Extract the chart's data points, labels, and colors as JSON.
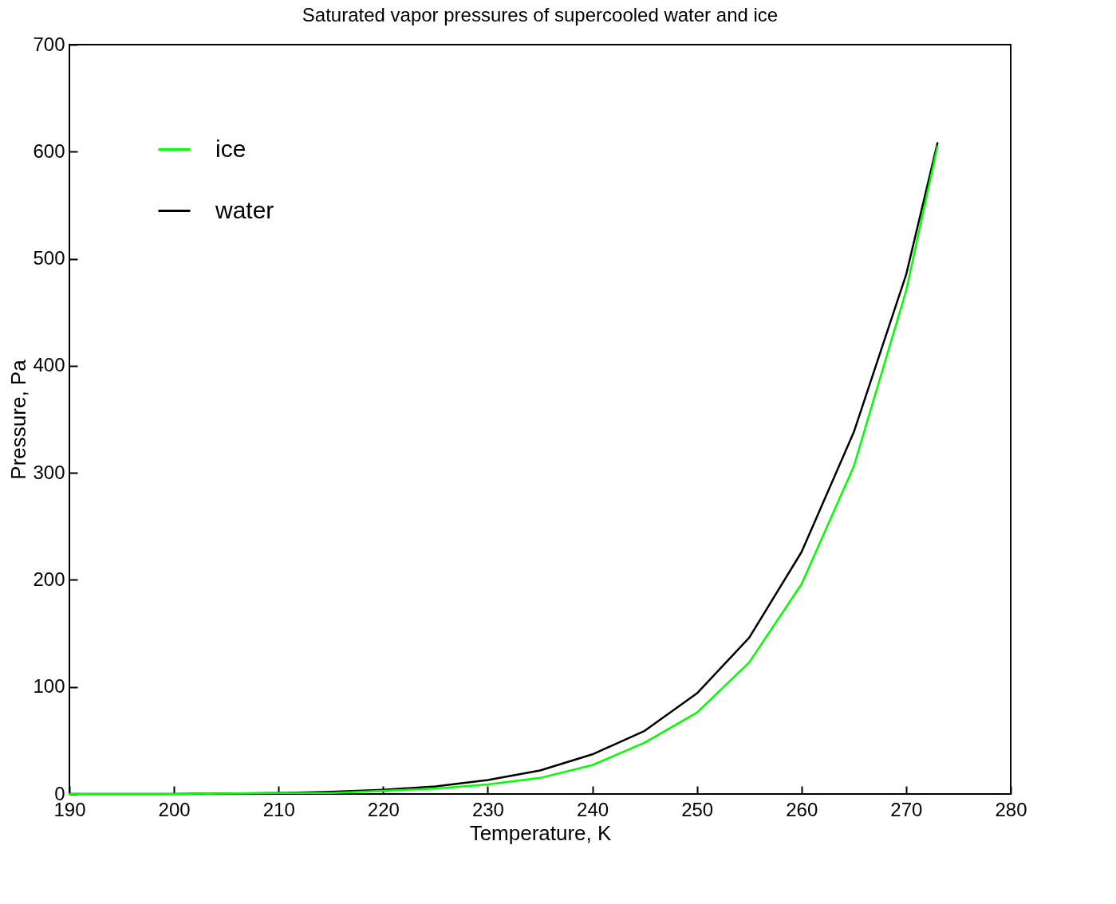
{
  "chart_data": {
    "type": "line",
    "title": "Saturated vapor pressures of supercooled water and ice",
    "xlabel": "Temperature, K",
    "ylabel": "Pressure, Pa",
    "xlim": [
      190,
      280
    ],
    "ylim": [
      0,
      700
    ],
    "xticks": [
      190,
      200,
      210,
      220,
      230,
      240,
      250,
      260,
      270,
      280
    ],
    "yticks": [
      0,
      100,
      200,
      300,
      400,
      500,
      600,
      700
    ],
    "grid": false,
    "legend": "top left",
    "marker": "none",
    "line_style": "solid",
    "series": [
      {
        "name": "ice",
        "color": "#00ff00",
        "x": [
          190,
          200,
          210,
          215,
          220,
          225,
          230,
          235,
          240,
          245,
          250,
          255,
          260,
          265,
          270,
          273
        ],
        "values": [
          0,
          0,
          1,
          1,
          3,
          5,
          9,
          15,
          27,
          48,
          76,
          123,
          196,
          306,
          470,
          605
        ]
      },
      {
        "name": "water",
        "color": "#000000",
        "x": [
          190,
          200,
          210,
          215,
          220,
          225,
          230,
          235,
          240,
          245,
          250,
          255,
          260,
          265,
          270,
          273
        ],
        "values": [
          0,
          0,
          1,
          2,
          4,
          7,
          13,
          22,
          37,
          59,
          94,
          146,
          226,
          338,
          485,
          608
        ]
      }
    ]
  }
}
